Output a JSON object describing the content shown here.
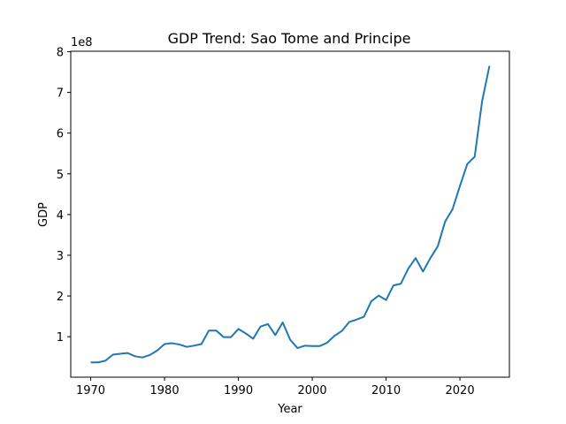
{
  "chart_data": {
    "type": "line",
    "title": "GDP Trend: Sao Tome and Principe",
    "x_label": "Year",
    "y_label": "GDP",
    "y_offset_label": "1e8",
    "x": [
      1970,
      1971,
      1972,
      1973,
      1974,
      1975,
      1976,
      1977,
      1978,
      1979,
      1980,
      1981,
      1982,
      1983,
      1984,
      1985,
      1986,
      1987,
      1988,
      1989,
      1990,
      1991,
      1992,
      1993,
      1994,
      1995,
      1996,
      1997,
      1998,
      1999,
      2000,
      2001,
      2002,
      2003,
      2004,
      2005,
      2006,
      2007,
      2008,
      2009,
      2010,
      2011,
      2012,
      2013,
      2014,
      2015,
      2016,
      2017,
      2018,
      2019,
      2020,
      2021,
      2022,
      2023,
      2024
    ],
    "series": [
      {
        "name": "GDP",
        "color": "#1f77b4",
        "values": [
          0.37,
          0.37,
          0.41,
          0.56,
          0.58,
          0.6,
          0.52,
          0.49,
          0.55,
          0.66,
          0.82,
          0.84,
          0.81,
          0.75,
          0.78,
          0.82,
          1.15,
          1.15,
          0.99,
          0.99,
          1.19,
          1.08,
          0.95,
          1.25,
          1.31,
          1.04,
          1.35,
          0.93,
          0.72,
          0.78,
          0.77,
          0.77,
          0.85,
          1.02,
          1.14,
          1.36,
          1.42,
          1.49,
          1.87,
          2.01,
          1.9,
          2.26,
          2.3,
          2.67,
          2.93,
          2.6,
          2.93,
          3.22,
          3.83,
          4.13,
          4.7,
          5.24,
          5.42,
          6.78,
          7.65
        ]
      }
    ],
    "xlim": [
      1967.3,
      2026.7
    ],
    "xticks": [
      1970,
      1980,
      1990,
      2000,
      2010,
      2020
    ],
    "ylim": [
      0.006,
      8.01
    ],
    "yticks": [
      1,
      2,
      3,
      4,
      5,
      6,
      7,
      8
    ]
  }
}
